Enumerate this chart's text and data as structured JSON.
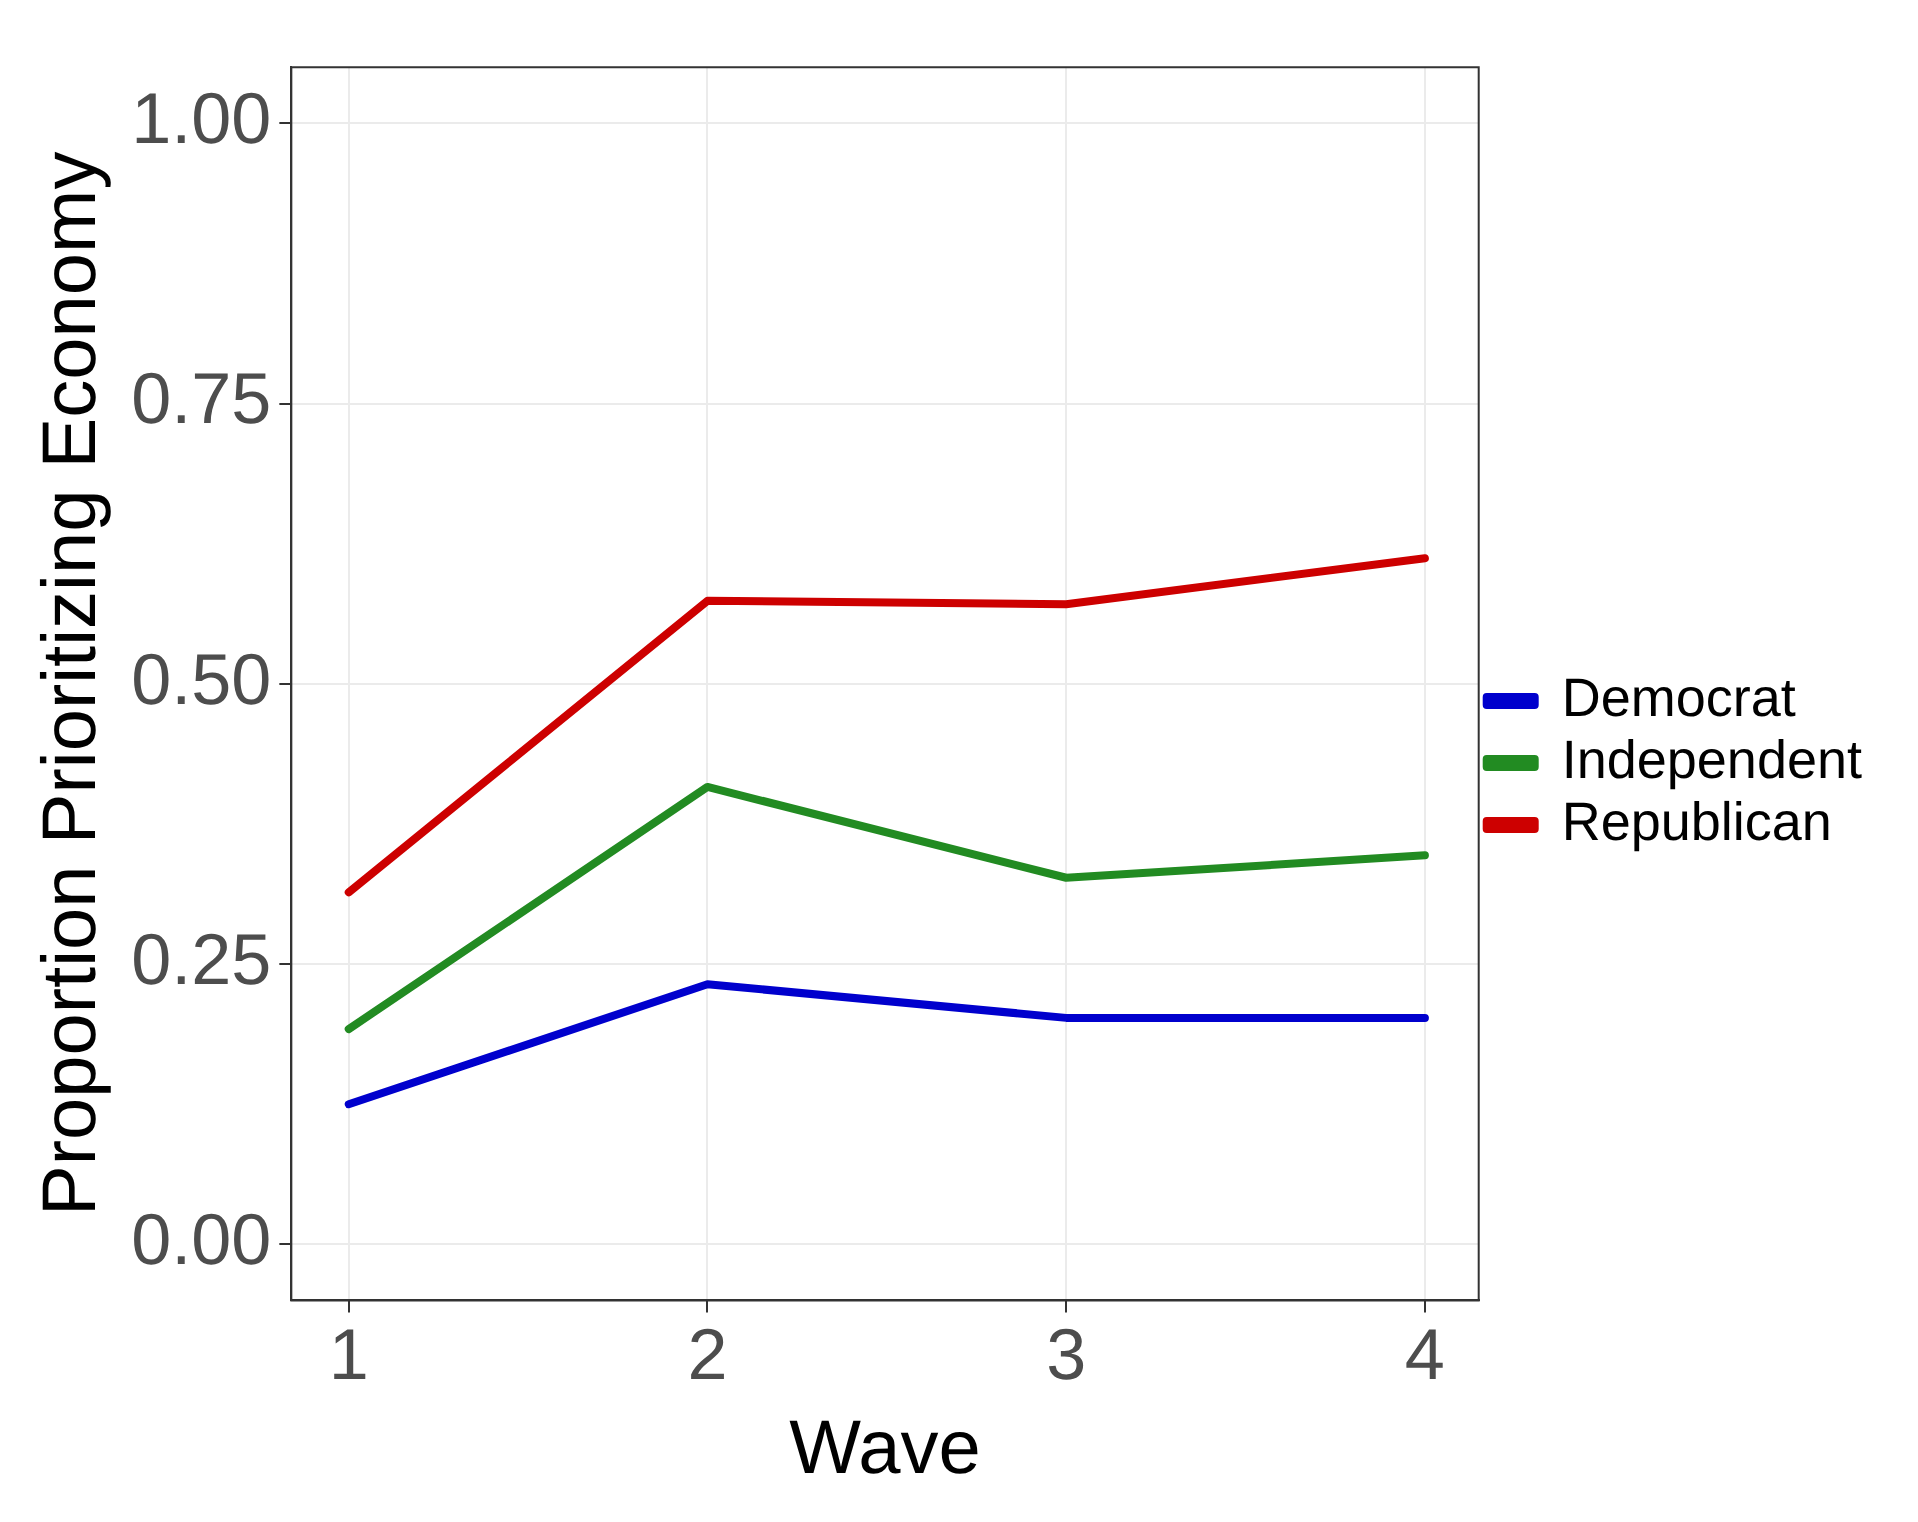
{
  "chart_data": {
    "type": "line",
    "xlabel": "Wave",
    "ylabel": "Proportion Prioritizing Economy",
    "x": [
      1,
      2,
      3,
      4
    ],
    "series": [
      {
        "name": "Democrat",
        "color": "#0000cd",
        "values": [
          0.125,
          0.232,
          0.202,
          0.202
        ]
      },
      {
        "name": "Independent",
        "color": "#228b22",
        "values": [
          0.192,
          0.408,
          0.327,
          0.347
        ]
      },
      {
        "name": "Republican",
        "color": "#cd0000",
        "values": [
          0.314,
          0.574,
          0.571,
          0.612
        ]
      }
    ],
    "xlim": [
      0.84,
      4.15
    ],
    "xticks": [
      1,
      2,
      3,
      4
    ],
    "ylim": [
      -0.05,
      1.05
    ],
    "yticks": [
      {
        "value": 0,
        "label": "0.00"
      },
      {
        "value": 0.25,
        "label": "0.25"
      },
      {
        "value": 0.5,
        "label": "0.50"
      },
      {
        "value": 0.75,
        "label": "0.75"
      },
      {
        "value": 1,
        "label": "1.00"
      }
    ],
    "grid": true,
    "legend": "right",
    "marker": "none",
    "line_style": "solid"
  }
}
